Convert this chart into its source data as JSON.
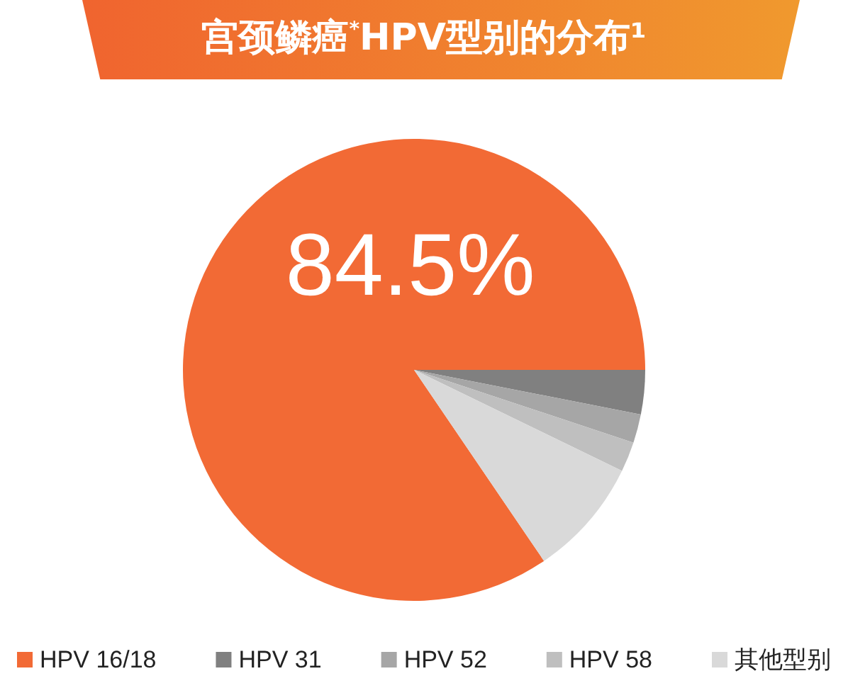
{
  "chart_data": {
    "type": "pie",
    "title": "宫颈鳞癌$^{*}$HPV型别的分布¹",
    "categories": [
      "HPV 16/18",
      "HPV 31",
      "HPV 52",
      "HPV 58",
      "其他型别"
    ],
    "values": [
      84.5,
      3.1,
      2.0,
      2.1,
      8.3
    ],
    "colors": [
      "#f26a35",
      "#808080",
      "#a6a6a6",
      "#bfbfbf",
      "#d9d9d9"
    ],
    "value_labels": [
      "84.5%",
      null,
      null,
      null,
      null
    ],
    "legend": "bottom"
  }
}
